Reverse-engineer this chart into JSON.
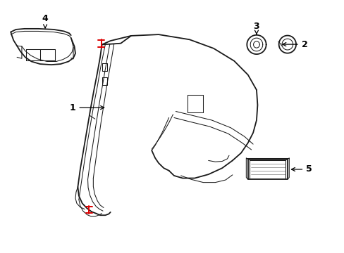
{
  "background_color": "#ffffff",
  "line_color": "#1a1a1a",
  "red_color": "#dd0000",
  "label_color": "#000000",
  "figsize": [
    4.89,
    3.6
  ],
  "dpi": 100,
  "lw_main": 1.3,
  "lw_thin": 0.75,
  "lw_red": 1.4,
  "label_fontsize": 9
}
